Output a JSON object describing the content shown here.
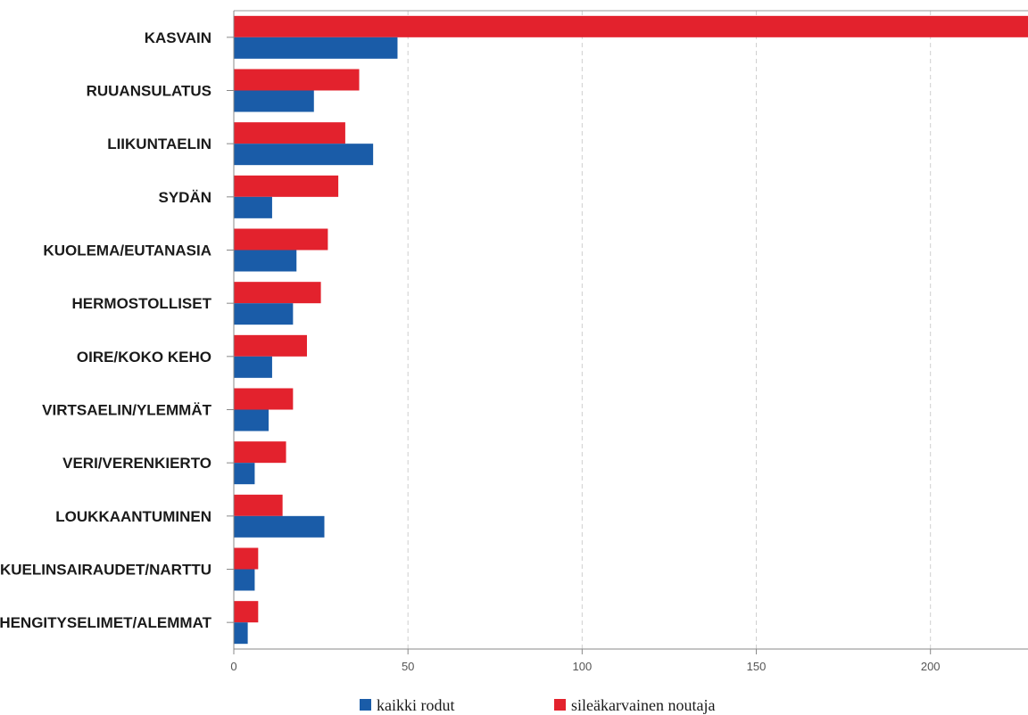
{
  "chart_data": {
    "type": "bar",
    "orientation": "horizontal",
    "categories": [
      "KASVAIN",
      "RUUANSULATUS",
      "LIIKUNTAELIN",
      "SYDÄN",
      "KUOLEMA/EUTANASIA",
      "HERMOSTOLLISET",
      "OIRE/KOKO KEHO",
      "VIRTSAELIN/YLEMMÄT",
      "VERI/VERENKIERTO",
      "LOUKKAANTUMINEN",
      "SUKUELINSAIRAUDET/NARTTU",
      "HENGITYSELIMET/ALEMMAT"
    ],
    "series": [
      {
        "name": "kaikki rodut",
        "color": "#1a5ca8",
        "values": [
          47,
          23,
          40,
          11,
          18,
          17,
          11,
          10,
          6,
          26,
          6,
          4
        ]
      },
      {
        "name": "sileäkarvainen noutaja",
        "color": "#e3222d",
        "values": [
          230,
          36,
          32,
          30,
          27,
          25,
          21,
          17,
          15,
          14,
          7,
          7
        ]
      }
    ],
    "xlim": [
      0,
      228
    ],
    "xticks": [
      0,
      50,
      100,
      150,
      200
    ],
    "grid": true,
    "legend_position": "bottom"
  }
}
